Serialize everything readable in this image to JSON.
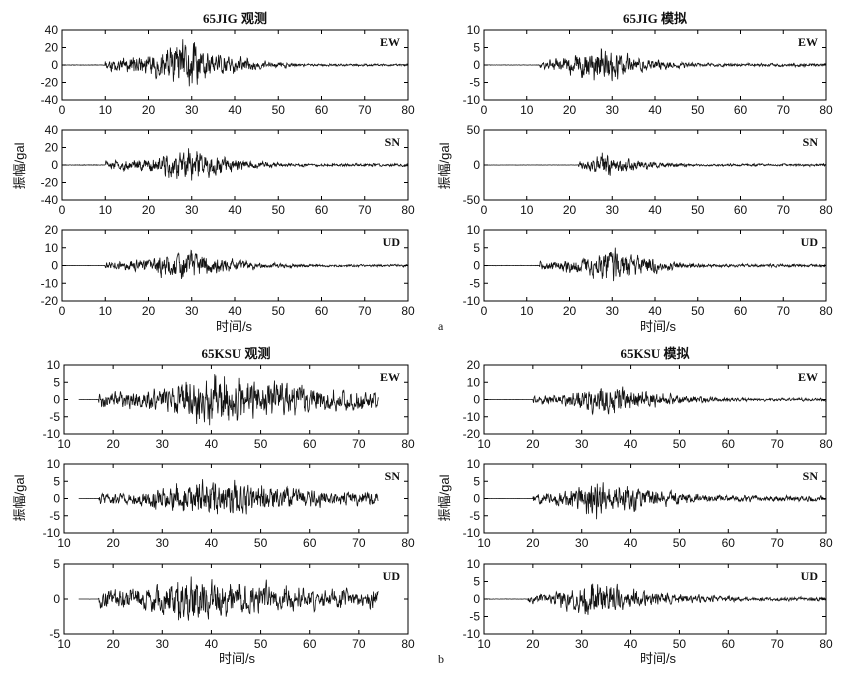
{
  "groups": [
    {
      "label": "a",
      "xlabel": "时间/s",
      "ylabel": "振幅/gal"
    },
    {
      "label": "b",
      "xlabel": "时间/s",
      "ylabel": "振幅/gal"
    }
  ],
  "chart_data": [
    {
      "id": "a-obs-ew",
      "type": "line",
      "title": "65JIG 观测",
      "component": "EW",
      "xlim": [
        0,
        80
      ],
      "ylim": [
        -40,
        40
      ],
      "xticks": [
        0,
        10,
        20,
        30,
        40,
        50,
        60,
        70,
        80
      ],
      "yticks": [
        -40,
        -20,
        0,
        20,
        40
      ],
      "onset": 10,
      "end": 80,
      "peak_time": 30,
      "peak_amp": 33,
      "noise_amp": 1.5,
      "tail_amp": 1.5,
      "rise": 3,
      "decay": 9,
      "seed": 11
    },
    {
      "id": "a-obs-sn",
      "type": "line",
      "title": "",
      "component": "SN",
      "xlim": [
        0,
        80
      ],
      "ylim": [
        -40,
        40
      ],
      "xticks": [
        0,
        10,
        20,
        30,
        40,
        50,
        60,
        70,
        80
      ],
      "yticks": [
        -40,
        -20,
        0,
        20,
        40
      ],
      "onset": 10,
      "end": 80,
      "peak_time": 30,
      "peak_amp": 22,
      "noise_amp": 1.5,
      "tail_amp": 1.8,
      "rise": 4,
      "decay": 10,
      "seed": 23
    },
    {
      "id": "a-obs-ud",
      "type": "line",
      "title": "",
      "component": "UD",
      "xlim": [
        0,
        80
      ],
      "ylim": [
        -20,
        20
      ],
      "xticks": [
        0,
        10,
        20,
        30,
        40,
        50,
        60,
        70,
        80
      ],
      "yticks": [
        -20,
        -10,
        0,
        10,
        20
      ],
      "onset": 10,
      "end": 80,
      "peak_time": 28,
      "peak_amp": 10,
      "noise_amp": 0.5,
      "tail_amp": 0.8,
      "rise": 2,
      "decay": 12,
      "seed": 37
    },
    {
      "id": "a-sim-ew",
      "type": "line",
      "title": "65JIG 模拟",
      "component": "EW",
      "xlim": [
        0,
        80
      ],
      "ylim": [
        -10,
        10
      ],
      "xticks": [
        0,
        10,
        20,
        30,
        40,
        50,
        60,
        70,
        80
      ],
      "yticks": [
        -10,
        -5,
        0,
        5,
        10
      ],
      "onset": 13,
      "end": 80,
      "peak_time": 27,
      "peak_amp": 6.5,
      "noise_amp": 0.3,
      "tail_amp": 0.5,
      "rise": 4,
      "decay": 10,
      "seed": 41
    },
    {
      "id": "a-sim-sn",
      "type": "line",
      "title": "",
      "component": "SN",
      "xlim": [
        0,
        80
      ],
      "ylim": [
        -50,
        50
      ],
      "xticks": [
        0,
        10,
        20,
        30,
        40,
        50,
        60,
        70,
        80
      ],
      "yticks": [
        -50,
        0,
        50
      ],
      "onset": 22,
      "end": 80,
      "peak_time": 28,
      "peak_amp": 22,
      "noise_amp": 1,
      "tail_amp": 2,
      "rise": 2,
      "decay": 9,
      "seed": 53
    },
    {
      "id": "a-sim-ud",
      "type": "line",
      "title": "",
      "component": "UD",
      "xlim": [
        0,
        80
      ],
      "ylim": [
        -10,
        10
      ],
      "xticks": [
        0,
        10,
        20,
        30,
        40,
        50,
        60,
        70,
        80
      ],
      "yticks": [
        -10,
        -5,
        0,
        5,
        10
      ],
      "onset": 13,
      "end": 80,
      "peak_time": 30,
      "peak_amp": 5.5,
      "noise_amp": 0.3,
      "tail_amp": 0.5,
      "rise": 5,
      "decay": 10,
      "seed": 67
    },
    {
      "id": "b-obs-ew",
      "type": "line",
      "title": "65KSU 观测",
      "component": "EW",
      "xlim": [
        10,
        80
      ],
      "ylim": [
        -10,
        10
      ],
      "xticks": [
        10,
        20,
        30,
        40,
        50,
        60,
        70,
        80
      ],
      "yticks": [
        -10,
        -5,
        0,
        5,
        10
      ],
      "start": 13,
      "onset": 17,
      "end": 74,
      "peak_time": 40,
      "peak_amp": 9,
      "noise_amp": 0.15,
      "tail_amp": 2.5,
      "rise": 8,
      "decay": 30,
      "seed": 71
    },
    {
      "id": "b-obs-sn",
      "type": "line",
      "title": "",
      "component": "SN",
      "xlim": [
        10,
        80
      ],
      "ylim": [
        -10,
        10
      ],
      "xticks": [
        10,
        20,
        30,
        40,
        50,
        60,
        70,
        80
      ],
      "yticks": [
        -10,
        -5,
        0,
        5,
        10
      ],
      "start": 13,
      "onset": 17,
      "end": 74,
      "peak_time": 38,
      "peak_amp": 7,
      "noise_amp": 0.15,
      "tail_amp": 2,
      "rise": 8,
      "decay": 30,
      "seed": 83
    },
    {
      "id": "b-obs-ud",
      "type": "line",
      "title": "",
      "component": "UD",
      "xlim": [
        10,
        80
      ],
      "ylim": [
        -5,
        5
      ],
      "xticks": [
        10,
        20,
        30,
        40,
        50,
        60,
        70,
        80
      ],
      "yticks": [
        -5,
        0,
        5
      ],
      "start": 13,
      "onset": 17,
      "end": 74,
      "peak_time": 35,
      "peak_amp": 4,
      "noise_amp": 0.05,
      "tail_amp": 1.5,
      "rise": 5,
      "decay": 30,
      "seed": 97
    },
    {
      "id": "b-sim-ew",
      "type": "line",
      "title": "65KSU 模拟",
      "component": "EW",
      "xlim": [
        10,
        80
      ],
      "ylim": [
        -20,
        20
      ],
      "xticks": [
        10,
        20,
        30,
        40,
        50,
        60,
        70,
        80
      ],
      "yticks": [
        -20,
        -10,
        0,
        10,
        20
      ],
      "onset": 20,
      "end": 80,
      "peak_time": 35,
      "peak_amp": 12,
      "noise_amp": 0.4,
      "tail_amp": 1,
      "rise": 6,
      "decay": 12,
      "seed": 101
    },
    {
      "id": "b-sim-sn",
      "type": "line",
      "title": "",
      "component": "SN",
      "xlim": [
        10,
        80
      ],
      "ylim": [
        -10,
        10
      ],
      "xticks": [
        10,
        20,
        30,
        40,
        50,
        60,
        70,
        80
      ],
      "yticks": [
        -10,
        -5,
        0,
        5,
        10
      ],
      "onset": 20,
      "end": 80,
      "peak_time": 33,
      "peak_amp": 7,
      "noise_amp": 0.2,
      "tail_amp": 1,
      "rise": 6,
      "decay": 14,
      "seed": 113
    },
    {
      "id": "b-sim-ud",
      "type": "line",
      "title": "",
      "component": "UD",
      "xlim": [
        10,
        80
      ],
      "ylim": [
        -10,
        10
      ],
      "xticks": [
        10,
        20,
        30,
        40,
        50,
        60,
        70,
        80
      ],
      "yticks": [
        -10,
        -5,
        0,
        5,
        10
      ],
      "onset": 19,
      "end": 80,
      "peak_time": 32,
      "peak_amp": 6,
      "noise_amp": 0.3,
      "tail_amp": 0.7,
      "rise": 6,
      "decay": 15,
      "seed": 127
    }
  ]
}
